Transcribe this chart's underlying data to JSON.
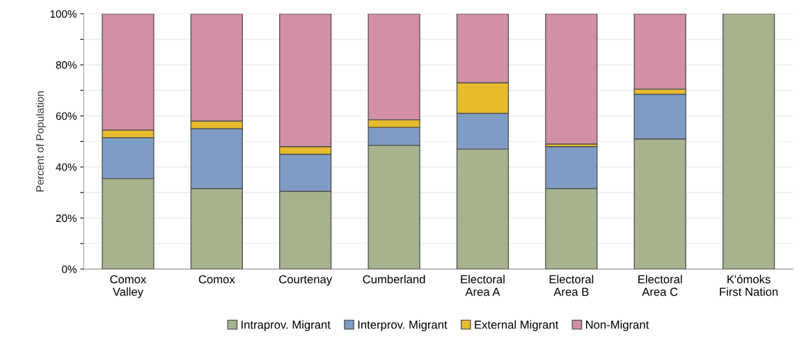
{
  "chart_data": {
    "type": "bar",
    "stacked": true,
    "ylabel": "Percent of Population",
    "categories": [
      "Comox\nValley",
      "Comox",
      "Courtenay",
      "Cumberland",
      "Electoral\nArea A",
      "Electoral\nArea B",
      "Electoral\nArea C",
      "K'ómoks\nFirst Nation"
    ],
    "series": [
      {
        "name": "Intraprov. Migrant",
        "color": "#a6b38e",
        "values": [
          35.5,
          31.5,
          30.5,
          48.5,
          47,
          31.5,
          51,
          100
        ]
      },
      {
        "name": "Interprov. Migrant",
        "color": "#7f9cc4",
        "values": [
          16,
          23.5,
          14.5,
          7,
          14,
          16.5,
          17.5,
          0
        ]
      },
      {
        "name": "External Migrant",
        "color": "#e8bb2c",
        "values": [
          3,
          3,
          3,
          3,
          12,
          1,
          2,
          0
        ]
      },
      {
        "name": "Non-Migrant",
        "color": "#d390a4",
        "values": [
          45.5,
          42,
          52,
          41.5,
          27,
          51,
          29.5,
          0
        ]
      }
    ],
    "ylim": [
      0,
      100
    ],
    "yticks": [
      {
        "value": 0,
        "label": "0%"
      },
      {
        "value": 10,
        "label": null
      },
      {
        "value": 20,
        "label": "20%"
      },
      {
        "value": 30,
        "label": null
      },
      {
        "value": 40,
        "label": "40%"
      },
      {
        "value": 50,
        "label": null
      },
      {
        "value": 60,
        "label": "60%"
      },
      {
        "value": 70,
        "label": null
      },
      {
        "value": 80,
        "label": "80%"
      },
      {
        "value": 90,
        "label": null
      },
      {
        "value": 100,
        "label": "100%"
      }
    ],
    "grid": "y",
    "legend": "bottom"
  }
}
